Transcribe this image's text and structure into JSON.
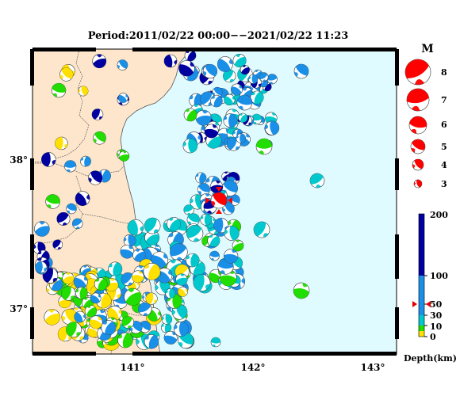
{
  "title": "Period:2011/02/22 00:00−−2021/02/22 11:23",
  "longitude_labels": [
    "141°",
    "142°",
    "143°"
  ],
  "latitude_labels": [
    "38°",
    "37°"
  ],
  "magnitude_legend": {
    "heading": "M",
    "levels": [
      "8",
      "7",
      "6",
      "5",
      "4",
      "3"
    ]
  },
  "depth_scale": {
    "unit_label": "Depth(km)",
    "ticks": [
      "200",
      "100",
      "50",
      "30",
      "10",
      "0"
    ],
    "colors": {
      "shallow": "#ffe000",
      "mid_shallow": "#22dd00",
      "mid": "#00c8cc",
      "intermediate": "#1a8fe8",
      "deep": "#0000a0"
    }
  },
  "colors": {
    "land": "#fde6cc",
    "sea": "#e0fbff",
    "highlight_event": "#ff0000"
  }
}
